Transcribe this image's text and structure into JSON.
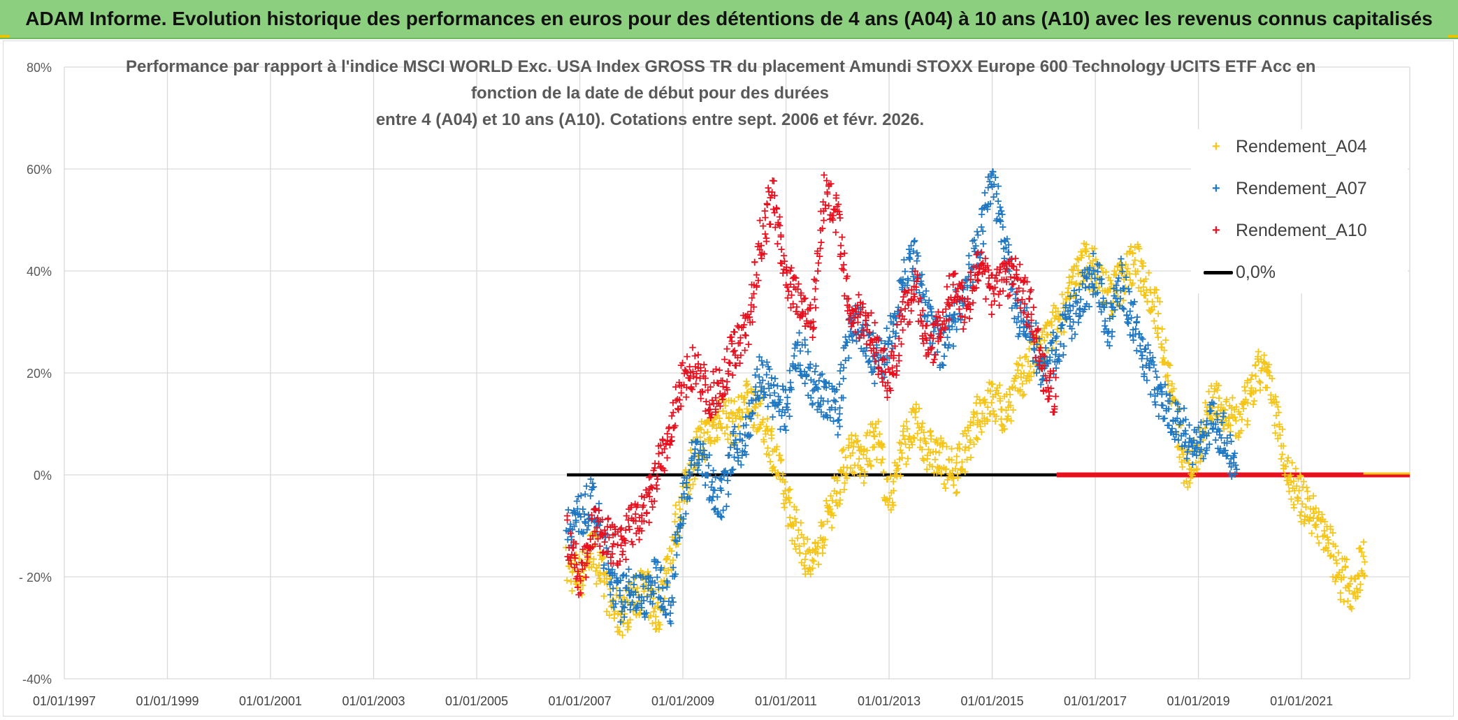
{
  "header": {
    "banner": "ADAM Informe. Evolution historique des performances en euros pour des détentions de 4 ans (A04) à 10 ans (A10) avec les revenus connus capitalisés"
  },
  "chart_data": {
    "type": "scatter",
    "title_lines": [
      "Performance par rapport à l'indice MSCI WORLD Exc. USA Index GROSS TR  du placement Amundi STOXX Europe 600 Technology UCITS ETF Acc en",
      "fonction de la date de début pour des durées",
      "entre 4 (A04) et 10 ans (A10). Cotations entre sept. 2006 et févr. 2026."
    ],
    "x_ticks": [
      "01/01/1997",
      "01/01/1999",
      "01/01/2001",
      "01/01/2003",
      "01/01/2005",
      "01/01/2007",
      "01/01/2009",
      "01/01/2011",
      "01/01/2013",
      "01/01/2015",
      "01/01/2017",
      "01/01/2019",
      "01/01/2021"
    ],
    "x_range": [
      1997.0,
      2023.1
    ],
    "y_ticks": [
      "80%",
      "60%",
      "40%",
      "20%",
      "0%",
      "- 20%",
      "-40%"
    ],
    "y_range": [
      -40,
      80
    ],
    "legend_position": "top-right",
    "series": [
      {
        "name": "Rendement_A04",
        "color": "#f5c518",
        "marker": "+",
        "points": [
          [
            2006.75,
            -18
          ],
          [
            2007.0,
            -20
          ],
          [
            2007.25,
            -14
          ],
          [
            2007.5,
            -22
          ],
          [
            2007.75,
            -28
          ],
          [
            2008.0,
            -25
          ],
          [
            2008.25,
            -22
          ],
          [
            2008.5,
            -28
          ],
          [
            2008.75,
            -15
          ],
          [
            2009.0,
            -5
          ],
          [
            2009.25,
            5
          ],
          [
            2009.5,
            8
          ],
          [
            2009.75,
            12
          ],
          [
            2010.0,
            10
          ],
          [
            2010.25,
            15
          ],
          [
            2010.5,
            12
          ],
          [
            2010.75,
            5
          ],
          [
            2011.0,
            -5
          ],
          [
            2011.25,
            -12
          ],
          [
            2011.5,
            -18
          ],
          [
            2011.75,
            -10
          ],
          [
            2012.0,
            -2
          ],
          [
            2012.25,
            5
          ],
          [
            2012.5,
            2
          ],
          [
            2012.75,
            8
          ],
          [
            2013.0,
            -5
          ],
          [
            2013.25,
            5
          ],
          [
            2013.5,
            10
          ],
          [
            2013.75,
            5
          ],
          [
            2014.0,
            3
          ],
          [
            2014.25,
            0
          ],
          [
            2014.5,
            5
          ],
          [
            2014.75,
            12
          ],
          [
            2015.0,
            15
          ],
          [
            2015.25,
            12
          ],
          [
            2015.5,
            18
          ],
          [
            2015.75,
            22
          ],
          [
            2016.0,
            25
          ],
          [
            2016.25,
            30
          ],
          [
            2016.5,
            35
          ],
          [
            2016.75,
            42
          ],
          [
            2017.0,
            40
          ],
          [
            2017.25,
            35
          ],
          [
            2017.5,
            38
          ],
          [
            2017.75,
            42
          ],
          [
            2018.0,
            38
          ],
          [
            2018.25,
            30
          ],
          [
            2018.5,
            15
          ],
          [
            2018.75,
            0
          ],
          [
            2019.0,
            5
          ],
          [
            2019.25,
            15
          ],
          [
            2019.5,
            12
          ],
          [
            2019.75,
            10
          ],
          [
            2020.0,
            15
          ],
          [
            2020.25,
            22
          ],
          [
            2020.5,
            12
          ],
          [
            2020.75,
            0
          ],
          [
            2021.0,
            -5
          ],
          [
            2021.25,
            -8
          ],
          [
            2021.5,
            -12
          ],
          [
            2021.75,
            -20
          ],
          [
            2022.0,
            -22
          ],
          [
            2022.25,
            -15
          ]
        ]
      },
      {
        "name": "Rendement_A07",
        "color": "#1f77c2",
        "marker": "+",
        "points": [
          [
            2006.75,
            -10
          ],
          [
            2007.0,
            -8
          ],
          [
            2007.25,
            -5
          ],
          [
            2007.5,
            -15
          ],
          [
            2007.75,
            -25
          ],
          [
            2008.0,
            -22
          ],
          [
            2008.25,
            -24
          ],
          [
            2008.5,
            -20
          ],
          [
            2008.75,
            -25
          ],
          [
            2009.0,
            -5
          ],
          [
            2009.25,
            5
          ],
          [
            2009.5,
            0
          ],
          [
            2009.75,
            -5
          ],
          [
            2010.0,
            5
          ],
          [
            2010.25,
            8
          ],
          [
            2010.5,
            20
          ],
          [
            2010.75,
            15
          ],
          [
            2011.0,
            12
          ],
          [
            2011.25,
            25
          ],
          [
            2011.5,
            18
          ],
          [
            2011.75,
            15
          ],
          [
            2012.0,
            12
          ],
          [
            2012.25,
            30
          ],
          [
            2012.5,
            28
          ],
          [
            2012.75,
            22
          ],
          [
            2013.0,
            25
          ],
          [
            2013.25,
            38
          ],
          [
            2013.5,
            42
          ],
          [
            2013.75,
            30
          ],
          [
            2014.0,
            25
          ],
          [
            2014.25,
            30
          ],
          [
            2014.5,
            38
          ],
          [
            2014.75,
            45
          ],
          [
            2015.0,
            58
          ],
          [
            2015.25,
            45
          ],
          [
            2015.5,
            30
          ],
          [
            2015.75,
            28
          ],
          [
            2016.0,
            20
          ],
          [
            2016.25,
            25
          ],
          [
            2016.5,
            30
          ],
          [
            2016.75,
            35
          ],
          [
            2017.0,
            40
          ],
          [
            2017.25,
            28
          ],
          [
            2017.5,
            38
          ],
          [
            2017.75,
            30
          ],
          [
            2018.0,
            22
          ],
          [
            2018.25,
            15
          ],
          [
            2018.5,
            12
          ],
          [
            2018.75,
            8
          ],
          [
            2019.0,
            5
          ],
          [
            2019.25,
            10
          ],
          [
            2019.5,
            8
          ],
          [
            2019.75,
            0
          ]
        ]
      },
      {
        "name": "Rendement_A10",
        "color": "#e8101e",
        "marker": "+",
        "points": [
          [
            2006.75,
            -12
          ],
          [
            2007.0,
            -20
          ],
          [
            2007.25,
            -10
          ],
          [
            2007.5,
            -12
          ],
          [
            2007.75,
            -15
          ],
          [
            2008.0,
            -10
          ],
          [
            2008.25,
            -8
          ],
          [
            2008.5,
            0
          ],
          [
            2008.75,
            8
          ],
          [
            2009.0,
            18
          ],
          [
            2009.25,
            22
          ],
          [
            2009.5,
            15
          ],
          [
            2009.75,
            18
          ],
          [
            2010.0,
            25
          ],
          [
            2010.25,
            28
          ],
          [
            2010.5,
            45
          ],
          [
            2010.75,
            55
          ],
          [
            2011.0,
            38
          ],
          [
            2011.25,
            35
          ],
          [
            2011.5,
            30
          ],
          [
            2011.75,
            55
          ],
          [
            2012.0,
            50
          ],
          [
            2012.25,
            30
          ],
          [
            2012.5,
            32
          ],
          [
            2012.75,
            25
          ],
          [
            2013.0,
            18
          ],
          [
            2013.25,
            30
          ],
          [
            2013.5,
            38
          ],
          [
            2013.75,
            25
          ],
          [
            2014.0,
            28
          ],
          [
            2014.25,
            38
          ],
          [
            2014.5,
            32
          ],
          [
            2014.75,
            42
          ],
          [
            2015.0,
            35
          ],
          [
            2015.25,
            40
          ],
          [
            2015.5,
            38
          ],
          [
            2015.75,
            32
          ],
          [
            2016.0,
            20
          ],
          [
            2016.25,
            15
          ]
        ]
      },
      {
        "name": "0,0%",
        "color": "#000000",
        "marker": "line",
        "points": [
          [
            2006.75,
            0
          ],
          [
            2016.25,
            0
          ]
        ]
      }
    ],
    "extra": {
      "zero_red_segment": [
        [
          2016.25,
          0
        ],
        [
          2023.1,
          0
        ]
      ],
      "zero_yellow_tail": [
        [
          2022.2,
          0
        ],
        [
          2023.1,
          0
        ]
      ]
    }
  }
}
